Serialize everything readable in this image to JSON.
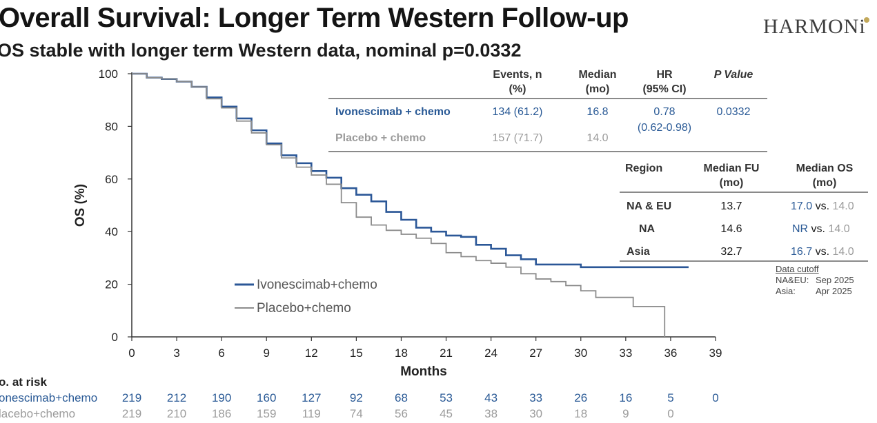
{
  "header": {
    "title": "Overall Survival: Longer Term Western Follow-up",
    "subtitle": "OS stable with longer term Western data, nominal p=0.0332",
    "logo_text": "HARMONi"
  },
  "summary_table": {
    "headers": {
      "events_line1": "Events, n",
      "events_line2": "(%)",
      "median_line1": "Median",
      "median_line2": "(mo)",
      "hr_line1": "HR",
      "hr_line2": "(95% CI)",
      "p": "P Value"
    },
    "rows": [
      {
        "arm": "Ivonescimab + chemo",
        "events": "134 (61.2)",
        "median": "16.8",
        "hr": "0.78",
        "ci": "(0.62-0.98)",
        "p": "0.0332"
      },
      {
        "arm": "Placebo + chemo",
        "events": "157 (71.7)",
        "median": "14.0"
      }
    ]
  },
  "region_table": {
    "headers": {
      "region": "Region",
      "fu_line1": "Median FU",
      "fu_line2": "(mo)",
      "os_line1": "Median OS",
      "os_line2": "(mo)"
    },
    "rows": [
      {
        "region": "NA & EU",
        "fu": "13.7",
        "ivo": "17.0",
        "vs": " vs. ",
        "pbo": "14.0"
      },
      {
        "region": "NA",
        "fu": "14.6",
        "ivo": "NR",
        "vs": " vs. ",
        "pbo": "14.0"
      },
      {
        "region": "Asia",
        "fu": "32.7",
        "ivo": "16.7",
        "vs": " vs. ",
        "pbo": "14.0"
      }
    ]
  },
  "data_cutoff": {
    "label": "Data cutoff",
    "line1_region": "NA&EU:",
    "line1_date": "Sep 2025",
    "line2_region": "Asia:",
    "line2_date": "Apr 2025"
  },
  "at_risk": {
    "label": "o. at risk",
    "rows": [
      {
        "name": "onescimab+chemo",
        "values": [
          "219",
          "212",
          "190",
          "160",
          "127",
          "92",
          "68",
          "53",
          "43",
          "33",
          "26",
          "16",
          "5",
          "0"
        ]
      },
      {
        "name": "lacebo+chemo",
        "values": [
          "219",
          "210",
          "186",
          "159",
          "119",
          "74",
          "56",
          "45",
          "38",
          "30",
          "18",
          "9",
          "0"
        ]
      }
    ]
  },
  "colors": {
    "ivonescimab": "#2b5797",
    "placebo": "#8c8c8c",
    "text_blue": "#2a5a96",
    "text_grey": "#9b9b9b"
  },
  "chart_data": {
    "type": "line",
    "title": "",
    "xlabel": "Months",
    "ylabel": "OS (%)",
    "xlim": [
      0,
      39
    ],
    "ylim": [
      0,
      100
    ],
    "x_ticks": [
      0,
      3,
      6,
      9,
      12,
      15,
      18,
      21,
      24,
      27,
      30,
      33,
      36,
      39
    ],
    "y_ticks": [
      0,
      20,
      40,
      60,
      80,
      100
    ],
    "legend_position": "bottom-left",
    "series": [
      {
        "name": "Ivonescimab+chemo",
        "x": [
          0,
          1,
          2,
          3,
          4,
          5,
          6,
          7,
          8,
          9,
          10,
          11,
          12,
          13,
          14,
          15,
          16,
          17,
          18,
          19,
          20,
          21,
          22,
          23,
          24,
          25,
          26,
          27,
          28,
          29,
          30,
          31,
          32,
          33,
          34,
          35,
          36,
          37.2
        ],
        "y": [
          100,
          98.5,
          98,
          97,
          95,
          91,
          87.5,
          83,
          78.5,
          73.5,
          69,
          66,
          63,
          60.5,
          56.5,
          54,
          51.5,
          47.5,
          44.5,
          41.5,
          40,
          38.5,
          38,
          35,
          33.5,
          31,
          29.5,
          27.5,
          27.5,
          27.5,
          26.5,
          26.5,
          26.5,
          26.5,
          26.5,
          26.5,
          26.5,
          26.5
        ]
      },
      {
        "name": "Placebo+chemo",
        "x": [
          0,
          1,
          2,
          3,
          4,
          5,
          6,
          7,
          8,
          9,
          10,
          11,
          12,
          13,
          14,
          15,
          16,
          17,
          18,
          19,
          20,
          21,
          22,
          23,
          24,
          25,
          26,
          27,
          28,
          29,
          30,
          31,
          32,
          33,
          33.5,
          34,
          35,
          35.6,
          35.6
        ],
        "y": [
          100,
          98.5,
          98,
          97,
          95,
          90.5,
          87,
          82,
          77.5,
          73,
          68,
          64.5,
          61.5,
          58,
          51,
          45.5,
          42.5,
          40.5,
          39,
          37.5,
          35.5,
          32,
          30.5,
          29,
          28,
          26.5,
          24,
          22,
          21,
          19.5,
          17.5,
          15,
          15,
          15,
          11.5,
          11.5,
          11.5,
          11.5,
          0
        ]
      }
    ]
  }
}
